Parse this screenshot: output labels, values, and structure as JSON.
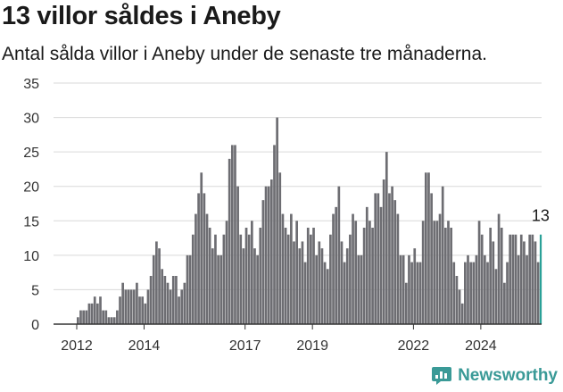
{
  "header": {
    "title": "13 villor såldes i Aneby",
    "subtitle": "Antal sålda villor i Aneby under de senaste tre månaderna."
  },
  "brand": {
    "name": "Newsworthy",
    "icon": "newsworthy-logo-icon",
    "color": "#3a9a97"
  },
  "colors": {
    "bar": "#6d6d72",
    "highlight": "#2aa198",
    "grid": "#d9d9d9",
    "text": "#333333"
  },
  "chart_data": {
    "type": "bar",
    "title": "13 villor såldes i Aneby",
    "subtitle": "Antal sålda villor i Aneby under de senaste tre månaderna.",
    "xlabel": "",
    "ylabel": "",
    "ylim": [
      0,
      35
    ],
    "yticks": [
      0,
      5,
      10,
      15,
      20,
      25,
      30,
      35
    ],
    "xticks": [
      {
        "label": "2012",
        "index": 0
      },
      {
        "label": "2014",
        "index": 24
      },
      {
        "label": "2017",
        "index": 60
      },
      {
        "label": "2019",
        "index": 84
      },
      {
        "label": "2022",
        "index": 120
      },
      {
        "label": "2024",
        "index": 144
      }
    ],
    "grid": true,
    "legend": "none",
    "highlight_annotation": "13",
    "values": [
      1,
      2,
      2,
      2,
      3,
      3,
      4,
      3,
      4,
      2,
      2,
      1,
      1,
      1,
      2,
      4,
      6,
      5,
      5,
      5,
      5,
      6,
      4,
      4,
      3,
      5,
      7,
      10,
      12,
      11,
      8,
      7,
      6,
      5,
      7,
      7,
      4,
      5,
      6,
      10,
      10,
      13,
      16,
      19,
      22,
      19,
      16,
      14,
      11,
      13,
      10,
      10,
      13,
      15,
      24,
      26,
      26,
      20,
      13,
      11,
      14,
      13,
      15,
      11,
      10,
      14,
      18,
      20,
      20,
      21,
      26,
      30,
      22,
      16,
      14,
      13,
      16,
      12,
      15,
      11,
      12,
      9,
      14,
      13,
      14,
      10,
      12,
      11,
      9,
      8,
      13,
      16,
      17,
      20,
      12,
      9,
      11,
      13,
      16,
      15,
      10,
      10,
      14,
      17,
      15,
      14,
      19,
      19,
      17,
      21,
      25,
      19,
      20,
      18,
      16,
      10,
      10,
      6,
      10,
      9,
      11,
      9,
      9,
      15,
      22,
      22,
      19,
      15,
      15,
      16,
      20,
      14,
      15,
      14,
      9,
      7,
      5,
      3,
      9,
      10,
      9,
      9,
      10,
      15,
      13,
      10,
      9,
      14,
      12,
      8,
      16,
      14,
      6,
      9,
      13,
      13,
      13,
      10,
      13,
      12,
      10,
      13,
      13,
      12,
      9,
      13
    ]
  }
}
